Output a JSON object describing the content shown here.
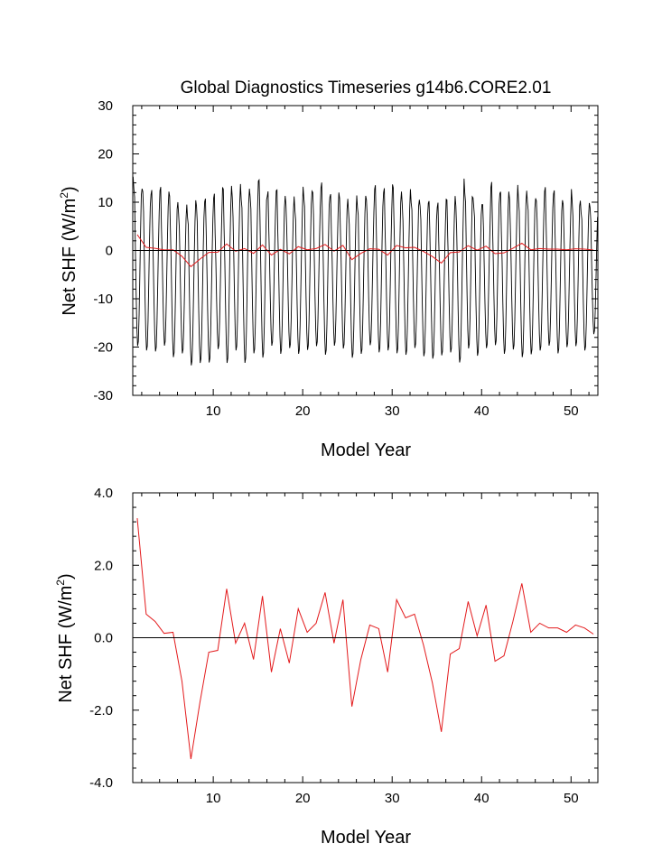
{
  "chart_data": [
    {
      "type": "line",
      "title": "Global Diagnostics Timeseries g14b6.CORE2.01",
      "xlabel": "Model Year",
      "ylabel_main": "Net SHF (W/m",
      "ylabel_sup": "2",
      "ylabel_tail": ")",
      "xlim": [
        1,
        53
      ],
      "ylim": [
        -30,
        30
      ],
      "xticks": [
        10,
        20,
        30,
        40,
        50
      ],
      "yticks": [
        -30,
        -20,
        -10,
        0,
        10,
        20,
        30
      ],
      "ytick_labels": [
        "-30",
        "-20",
        "-10",
        "0",
        "10",
        "20",
        "30"
      ],
      "reference_line": 0,
      "series": [
        {
          "color": "#000000",
          "monthly_peaks": [
            15.5,
            13.0,
            11.8,
            12.6,
            12.4,
            10.2,
            9.7,
            10.6,
            10.3,
            11.0,
            13.3,
            13.6,
            14.0,
            13.0,
            14.6,
            11.4,
            12.6,
            11.5,
            11.4,
            13.4,
            12.5,
            13.2,
            11.3,
            12.2,
            10.9,
            11.6,
            11.5,
            12.9,
            12.2,
            13.9,
            12.4,
            12.9,
            10.7,
            10.0,
            9.1,
            10.8,
            11.5,
            15.1,
            11.1,
            9.7,
            13.3,
            12.0,
            12.4,
            13.8,
            12.6,
            11.0,
            12.4,
            11.9,
            10.6,
            12.9,
            10.5,
            10.0
          ],
          "monthly_troughs": [
            -20.0,
            -20.9,
            -21.1,
            -19.9,
            -22.3,
            -21.5,
            -24.0,
            -23.5,
            -23.4,
            -20.6,
            -23.5,
            -20.9,
            -23.5,
            -21.5,
            -22.4,
            -19.9,
            -21.6,
            -20.4,
            -21.6,
            -20.8,
            -20.0,
            -21.8,
            -19.9,
            -20.5,
            -22.4,
            -21.6,
            -19.8,
            -21.3,
            -20.9,
            -21.5,
            -21.8,
            -20.4,
            -22.1,
            -22.6,
            -21.9,
            -21.3,
            -23.4,
            -20.5,
            -22.0,
            -20.4,
            -19.8,
            -21.6,
            -20.7,
            -22.3,
            -21.7,
            -20.9,
            -19.9,
            -21.5,
            -20.2,
            -20.0,
            -20.9,
            -17.5
          ]
        },
        {
          "color": "#e31a1c",
          "x": [
            1.5,
            2.5,
            3.5,
            4.5,
            5.5,
            6.5,
            7.5,
            8.5,
            9.5,
            10.5,
            11.5,
            12.5,
            13.5,
            14.5,
            15.5,
            16.5,
            17.5,
            18.5,
            19.5,
            20.5,
            21.5,
            22.5,
            23.5,
            24.5,
            25.5,
            26.5,
            27.5,
            28.5,
            29.5,
            30.5,
            31.5,
            32.5,
            33.5,
            34.5,
            35.5,
            36.5,
            37.5,
            38.5,
            39.5,
            40.5,
            41.5,
            42.5,
            43.5,
            44.5,
            45.5,
            46.5,
            47.5,
            48.5,
            49.5,
            50.5,
            51.5,
            52.5
          ],
          "values": [
            3.3,
            0.65,
            0.45,
            0.12,
            0.15,
            -1.2,
            -3.35,
            -1.8,
            -0.4,
            -0.35,
            1.35,
            -0.15,
            0.4,
            -0.6,
            1.15,
            -0.95,
            0.25,
            -0.7,
            0.8,
            0.15,
            0.4,
            1.25,
            -0.15,
            1.05,
            -1.9,
            -0.6,
            0.35,
            0.25,
            -0.95,
            1.05,
            0.55,
            0.65,
            -0.2,
            -1.25,
            -2.6,
            -0.45,
            -0.3,
            1.0,
            0.05,
            0.9,
            -0.65,
            -0.5,
            0.45,
            1.5,
            0.15,
            0.4,
            0.27,
            0.27,
            0.15,
            0.35,
            0.27,
            0.1
          ]
        }
      ]
    },
    {
      "type": "line",
      "title": "",
      "xlabel": "Model Year",
      "ylabel_main": "Net SHF (W/m",
      "ylabel_sup": "2",
      "ylabel_tail": ")",
      "xlim": [
        1,
        53
      ],
      "ylim": [
        -4.0,
        4.0
      ],
      "xticks": [
        10,
        20,
        30,
        40,
        50
      ],
      "yticks": [
        -4.0,
        -2.0,
        0.0,
        2.0,
        4.0
      ],
      "ytick_labels": [
        "-4.0",
        "-2.0",
        "0.0",
        "2.0",
        "4.0"
      ],
      "reference_line": 0,
      "series": [
        {
          "color": "#e31a1c",
          "x": [
            1.5,
            2.5,
            3.5,
            4.5,
            5.5,
            6.5,
            7.5,
            8.5,
            9.5,
            10.5,
            11.5,
            12.5,
            13.5,
            14.5,
            15.5,
            16.5,
            17.5,
            18.5,
            19.5,
            20.5,
            21.5,
            22.5,
            23.5,
            24.5,
            25.5,
            26.5,
            27.5,
            28.5,
            29.5,
            30.5,
            31.5,
            32.5,
            33.5,
            34.5,
            35.5,
            36.5,
            37.5,
            38.5,
            39.5,
            40.5,
            41.5,
            42.5,
            43.5,
            44.5,
            45.5,
            46.5,
            47.5,
            48.5,
            49.5,
            50.5,
            51.5,
            52.5
          ],
          "values": [
            3.3,
            0.65,
            0.45,
            0.12,
            0.15,
            -1.2,
            -3.35,
            -1.8,
            -0.4,
            -0.35,
            1.35,
            -0.15,
            0.4,
            -0.6,
            1.15,
            -0.95,
            0.25,
            -0.7,
            0.8,
            0.15,
            0.4,
            1.25,
            -0.15,
            1.05,
            -1.9,
            -0.6,
            0.35,
            0.25,
            -0.95,
            1.05,
            0.55,
            0.65,
            -0.2,
            -1.25,
            -2.6,
            -0.45,
            -0.3,
            1.0,
            0.05,
            0.9,
            -0.65,
            -0.5,
            0.45,
            1.5,
            0.15,
            0.4,
            0.27,
            0.27,
            0.15,
            0.35,
            0.27,
            0.1
          ]
        }
      ]
    }
  ]
}
